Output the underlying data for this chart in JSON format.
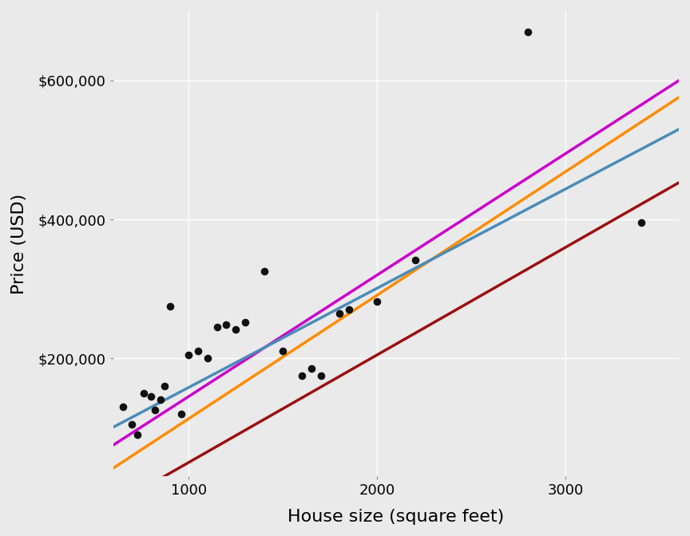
{
  "title": "",
  "xlabel": "House size (square feet)",
  "ylabel": "Price (USD)",
  "xlim": [
    600,
    3600
  ],
  "ylim": [
    30000,
    700000
  ],
  "background_color": "#EAEAEA",
  "grid_color": "#FFFFFF",
  "scatter_points": [
    [
      650,
      130000
    ],
    [
      700,
      105000
    ],
    [
      730,
      90000
    ],
    [
      760,
      150000
    ],
    [
      800,
      145000
    ],
    [
      820,
      125000
    ],
    [
      850,
      140000
    ],
    [
      870,
      160000
    ],
    [
      900,
      275000
    ],
    [
      960,
      120000
    ],
    [
      1000,
      205000
    ],
    [
      1050,
      210000
    ],
    [
      1100,
      200000
    ],
    [
      1150,
      245000
    ],
    [
      1200,
      248000
    ],
    [
      1250,
      242000
    ],
    [
      1300,
      252000
    ],
    [
      1400,
      325000
    ],
    [
      1500,
      210000
    ],
    [
      1600,
      175000
    ],
    [
      1650,
      185000
    ],
    [
      1700,
      175000
    ],
    [
      1800,
      265000
    ],
    [
      1850,
      270000
    ],
    [
      2000,
      282000
    ],
    [
      2200,
      342000
    ],
    [
      2800,
      670000
    ],
    [
      3400,
      395000
    ]
  ],
  "lines": [
    {
      "color": "#CC00CC",
      "intercept": -30000,
      "slope": 175
    },
    {
      "color": "#FF8C00",
      "intercept": -65000,
      "slope": 178
    },
    {
      "color": "#4A8CB8",
      "intercept": 15000,
      "slope": 143
    },
    {
      "color": "#9B1010",
      "intercept": -105000,
      "slope": 155
    }
  ],
  "point_color": "#111111",
  "point_size": 35,
  "xlabel_fontsize": 16,
  "ylabel_fontsize": 16,
  "tick_fontsize": 13
}
